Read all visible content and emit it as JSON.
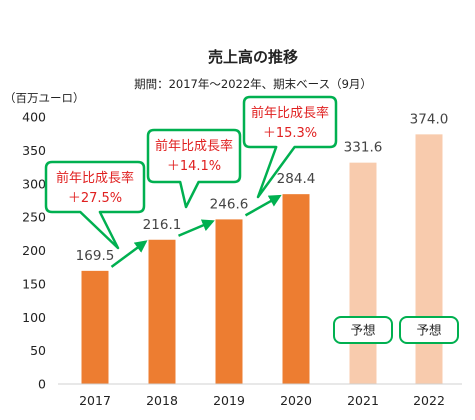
{
  "chart_data": {
    "type": "bar",
    "title": "売上高の推移",
    "subtitle": "期間：2017年～2022年、期末ベース（9月）",
    "ylabel": "（百万ユーロ）",
    "xlabel": "",
    "categories": [
      "2017",
      "2018",
      "2019",
      "2020",
      "2021",
      "2022"
    ],
    "values": [
      169.5,
      216.1,
      246.6,
      284.4,
      331.6,
      374.0
    ],
    "value_labels": [
      "169.5",
      "216.1",
      "246.6",
      "284.4",
      "331.6",
      "374.0"
    ],
    "ylim": [
      0,
      400
    ],
    "yticks": [
      "0",
      "50",
      "100",
      "150",
      "200",
      "250",
      "300",
      "350",
      "400"
    ],
    "grid": false,
    "legend": "none",
    "colors": {
      "actual": "#ed7d31",
      "forecast": "#f8cbad",
      "annotation_border": "#00b050",
      "annotation_text": "#e02020",
      "arrow": "#00b050"
    },
    "forecast_flags": [
      false,
      false,
      false,
      false,
      true,
      true
    ],
    "annotations": [
      {
        "line1": "前年比成長率",
        "line2": "＋27.5%"
      },
      {
        "line1": "前年比成長率",
        "line2": "＋14.1%"
      },
      {
        "line1": "前年比成長率",
        "line2": "＋15.3%"
      }
    ],
    "forecast_badges": [
      "予想",
      "予想"
    ]
  }
}
